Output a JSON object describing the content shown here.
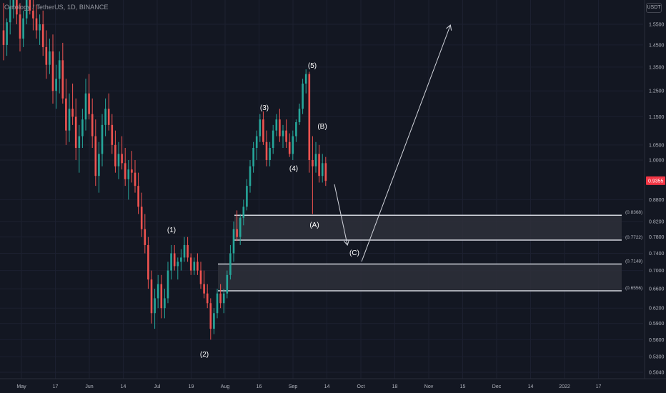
{
  "header": {
    "title": "Ontology / TetherUS, 1D, BINANCE",
    "currency": "USDT"
  },
  "chart_data": {
    "type": "candlestick",
    "scale": "log",
    "price_axis": {
      "ticks": [
        "1.5500",
        "1.4500",
        "1.3500",
        "1.2500",
        "1.1500",
        "1.0500",
        "1.0000",
        "0.8800",
        "0.8200",
        "0.7800",
        "0.7400",
        "0.7000",
        "0.6600",
        "0.6200",
        "0.5900",
        "0.5600",
        "0.5300",
        "0.5040"
      ],
      "current_price": "0.9355"
    },
    "time_axis": [
      "May",
      "17",
      "Jun",
      "14",
      "Jul",
      "19",
      "Aug",
      "16",
      "Sep",
      "14",
      "Oct",
      "18",
      "Nov",
      "15",
      "Dec",
      "14",
      "2022",
      "17"
    ],
    "zones": [
      {
        "top_label": "(0.8368)",
        "bottom_label": "(0.7722)",
        "top": 0.8368,
        "bottom": 0.7722
      },
      {
        "top_label": "(0.7148)",
        "bottom_label": "(0.6556)",
        "top": 0.7148,
        "bottom": 0.6556
      }
    ],
    "wave_labels": [
      "(1)",
      "(2)",
      "(3)",
      "(4)",
      "(5)",
      "(A)",
      "(B)",
      "(C)"
    ],
    "candles": [
      [
        1.52,
        1.66,
        1.38,
        1.45
      ],
      [
        1.45,
        1.58,
        1.4,
        1.56
      ],
      [
        1.56,
        1.72,
        1.5,
        1.64
      ],
      [
        1.64,
        1.8,
        1.58,
        1.7
      ],
      [
        1.7,
        1.78,
        1.55,
        1.6
      ],
      [
        1.6,
        1.66,
        1.42,
        1.48
      ],
      [
        1.48,
        1.62,
        1.44,
        1.58
      ],
      [
        1.58,
        1.75,
        1.55,
        1.68
      ],
      [
        1.68,
        1.78,
        1.6,
        1.62
      ],
      [
        1.62,
        1.7,
        1.52,
        1.58
      ],
      [
        1.58,
        1.65,
        1.48,
        1.52
      ],
      [
        1.52,
        1.6,
        1.45,
        1.55
      ],
      [
        1.55,
        1.62,
        1.4,
        1.44
      ],
      [
        1.44,
        1.52,
        1.3,
        1.36
      ],
      [
        1.36,
        1.48,
        1.32,
        1.42
      ],
      [
        1.42,
        1.5,
        1.2,
        1.25
      ],
      [
        1.25,
        1.36,
        1.18,
        1.3
      ],
      [
        1.3,
        1.42,
        1.24,
        1.38
      ],
      [
        1.38,
        1.46,
        1.2,
        1.22
      ],
      [
        1.22,
        1.3,
        1.05,
        1.1
      ],
      [
        1.1,
        1.24,
        1.06,
        1.18
      ],
      [
        1.18,
        1.28,
        1.12,
        1.15
      ],
      [
        1.15,
        1.22,
        1.0,
        1.04
      ],
      [
        1.04,
        1.12,
        0.96,
        1.08
      ],
      [
        1.08,
        1.18,
        1.04,
        1.14
      ],
      [
        1.14,
        1.3,
        1.1,
        1.24
      ],
      [
        1.24,
        1.32,
        1.14,
        1.16
      ],
      [
        1.16,
        1.22,
        1.04,
        1.08
      ],
      [
        1.08,
        1.14,
        0.92,
        0.95
      ],
      [
        0.95,
        1.06,
        0.9,
        1.02
      ],
      [
        1.02,
        1.16,
        0.98,
        1.12
      ],
      [
        1.12,
        1.22,
        1.08,
        1.18
      ],
      [
        1.18,
        1.24,
        1.1,
        1.12
      ],
      [
        1.12,
        1.16,
        1.02,
        1.05
      ],
      [
        1.05,
        1.1,
        0.96,
        0.98
      ],
      [
        0.98,
        1.06,
        0.94,
        1.02
      ],
      [
        1.02,
        1.08,
        0.97,
        0.99
      ],
      [
        0.99,
        1.04,
        0.92,
        0.94
      ],
      [
        0.94,
        1.0,
        0.88,
        0.97
      ],
      [
        0.97,
        1.03,
        0.93,
        0.96
      ],
      [
        0.96,
        1.0,
        0.9,
        0.92
      ],
      [
        0.92,
        0.96,
        0.84,
        0.86
      ],
      [
        0.86,
        0.9,
        0.78,
        0.8
      ],
      [
        0.8,
        0.84,
        0.74,
        0.76
      ],
      [
        0.76,
        0.78,
        0.66,
        0.68
      ],
      [
        0.68,
        0.7,
        0.59,
        0.61
      ],
      [
        0.61,
        0.66,
        0.58,
        0.64
      ],
      [
        0.64,
        0.69,
        0.62,
        0.67
      ],
      [
        0.67,
        0.69,
        0.6,
        0.62
      ],
      [
        0.62,
        0.66,
        0.6,
        0.64
      ],
      [
        0.64,
        0.72,
        0.63,
        0.7
      ],
      [
        0.7,
        0.76,
        0.68,
        0.74
      ],
      [
        0.74,
        0.76,
        0.7,
        0.71
      ],
      [
        0.71,
        0.73,
        0.68,
        0.72
      ],
      [
        0.72,
        0.75,
        0.7,
        0.73
      ],
      [
        0.73,
        0.78,
        0.72,
        0.76
      ],
      [
        0.76,
        0.78,
        0.72,
        0.73
      ],
      [
        0.73,
        0.74,
        0.69,
        0.7
      ],
      [
        0.7,
        0.73,
        0.69,
        0.72
      ],
      [
        0.72,
        0.74,
        0.69,
        0.7
      ],
      [
        0.7,
        0.72,
        0.66,
        0.67
      ],
      [
        0.67,
        0.7,
        0.64,
        0.65
      ],
      [
        0.65,
        0.67,
        0.62,
        0.63
      ],
      [
        0.63,
        0.64,
        0.56,
        0.58
      ],
      [
        0.58,
        0.62,
        0.57,
        0.61
      ],
      [
        0.61,
        0.66,
        0.6,
        0.65
      ],
      [
        0.65,
        0.67,
        0.62,
        0.63
      ],
      [
        0.63,
        0.66,
        0.61,
        0.65
      ],
      [
        0.65,
        0.7,
        0.64,
        0.69
      ],
      [
        0.69,
        0.76,
        0.68,
        0.74
      ],
      [
        0.74,
        0.82,
        0.72,
        0.8
      ],
      [
        0.8,
        0.85,
        0.77,
        0.78
      ],
      [
        0.78,
        0.84,
        0.76,
        0.83
      ],
      [
        0.83,
        0.88,
        0.81,
        0.86
      ],
      [
        0.86,
        0.94,
        0.85,
        0.92
      ],
      [
        0.92,
        1.0,
        0.9,
        0.98
      ],
      [
        0.98,
        1.06,
        0.96,
        1.04
      ],
      [
        1.04,
        1.1,
        1.0,
        1.08
      ],
      [
        1.08,
        1.16,
        1.06,
        1.14
      ],
      [
        1.14,
        1.17,
        1.05,
        1.06
      ],
      [
        1.06,
        1.1,
        0.98,
        1.0
      ],
      [
        1.0,
        1.06,
        0.98,
        1.04
      ],
      [
        1.04,
        1.12,
        1.02,
        1.1
      ],
      [
        1.1,
        1.16,
        1.08,
        1.14
      ],
      [
        1.14,
        1.18,
        1.06,
        1.08
      ],
      [
        1.08,
        1.12,
        1.04,
        1.1
      ],
      [
        1.1,
        1.14,
        1.04,
        1.06
      ],
      [
        1.06,
        1.09,
        1.01,
        1.02
      ],
      [
        1.02,
        1.1,
        1.0,
        1.08
      ],
      [
        1.08,
        1.14,
        1.06,
        1.13
      ],
      [
        1.13,
        1.2,
        1.12,
        1.18
      ],
      [
        1.18,
        1.3,
        1.16,
        1.28
      ],
      [
        1.28,
        1.34,
        1.24,
        1.32
      ],
      [
        1.32,
        1.33,
        0.96,
        1.0
      ],
      [
        1.0,
        1.08,
        0.84,
        0.98
      ],
      [
        0.98,
        1.06,
        0.96,
        1.02
      ],
      [
        1.02,
        1.05,
        0.93,
        0.95
      ],
      [
        0.95,
        1.02,
        0.93,
        0.99
      ],
      [
        0.99,
        1.01,
        0.92,
        0.935
      ]
    ]
  }
}
